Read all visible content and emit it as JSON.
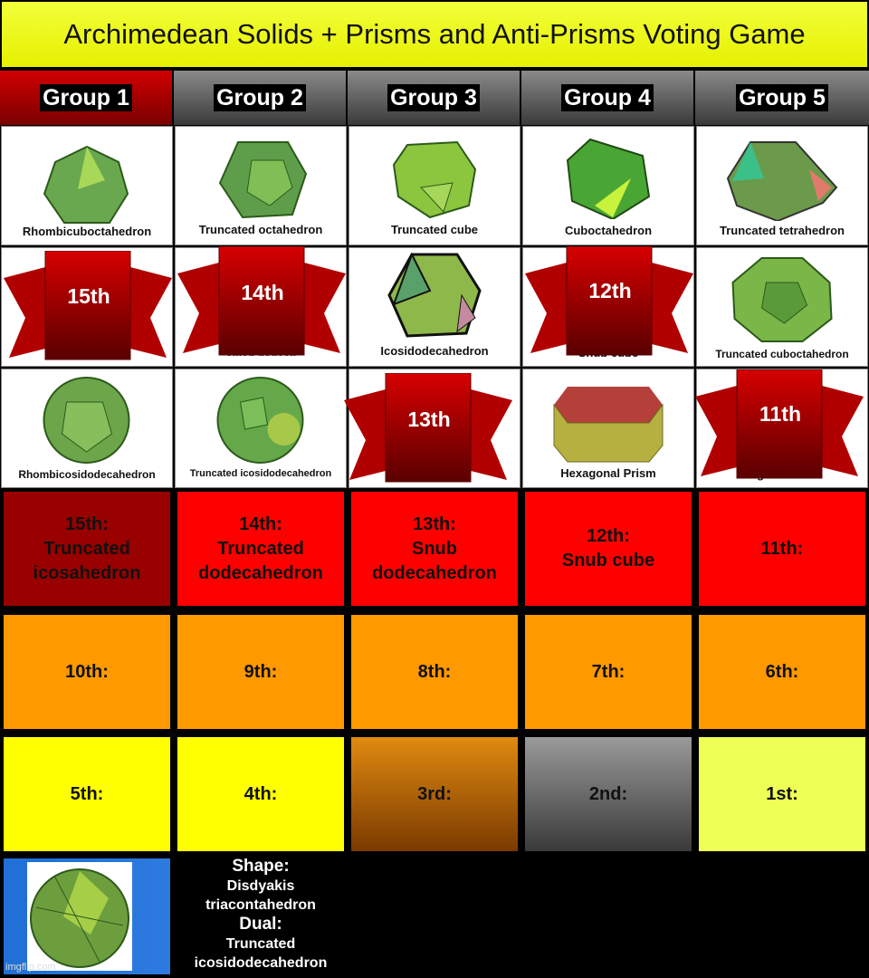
{
  "title": "Archimedean Solids + Prisms and Anti-Prisms Voting Game",
  "groups": [
    "Group 1",
    "Group 2",
    "Group 3",
    "Group 4",
    "Group 5"
  ],
  "shapes": {
    "r1": [
      "Rhombicuboctahedron",
      "Truncated octahedron",
      "Truncated cube",
      "Cuboctahedron",
      "Truncated tetrahedron"
    ],
    "r2": [
      "ed icosa",
      "cated dodeca",
      "Icosidodecahedron",
      "Snub cube",
      "Truncated cuboctahedron"
    ],
    "r3": [
      "Rhombicosidodecahedron",
      "Truncated icosidodecahedron",
      "dodec",
      "Hexagonal Prism",
      "agonal Anti"
    ]
  },
  "ribbons": [
    "15th",
    "14th",
    "12th",
    "13th",
    "11th"
  ],
  "ranks": {
    "r1": [
      "15th:\nTruncated\nicosahedron",
      "14th:\nTruncated\ndodecahedron",
      "13th:\nSnub\ndodecahedron",
      "12th:\nSnub cube",
      "11th:"
    ],
    "r2": [
      "10th:",
      "9th:",
      "8th:",
      "7th:",
      "6th:"
    ],
    "r3": [
      "5th:",
      "4th:",
      "3rd:",
      "2nd:",
      "1st:"
    ]
  },
  "info": {
    "shape_label": "Shape:",
    "shape_value": "Disdyakis triacontahedron",
    "dual_label": "Dual:",
    "dual_value": "Truncated icosidodecahedron"
  },
  "watermark": "imgflip.com"
}
